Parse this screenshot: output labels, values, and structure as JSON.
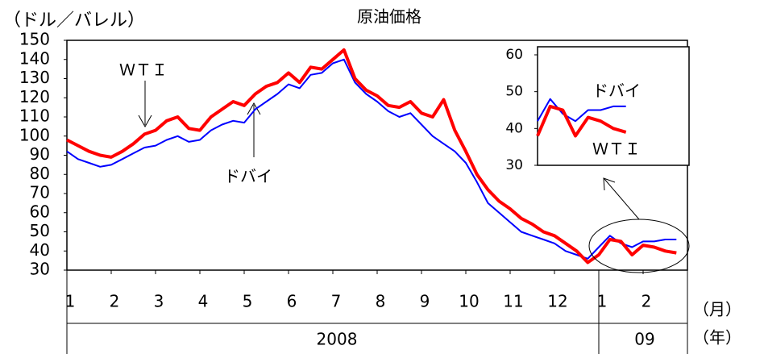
{
  "chart_data": {
    "type": "line",
    "title": "原油価格",
    "y_label": "（ドル／バレル）",
    "x_unit_label": "（月）",
    "year_unit_label": "（年）",
    "year_labels": [
      "2008",
      "09"
    ],
    "annotations": [
      "ＷＴＩ",
      "ドバイ"
    ],
    "xlim": [
      1,
      15
    ],
    "xticks": [
      1,
      2,
      3,
      4,
      5,
      6,
      7,
      8,
      9,
      10,
      11,
      12,
      {
        "value": 13,
        "label": "1"
      },
      {
        "value": 14,
        "label": "2"
      }
    ],
    "ylim": [
      30,
      150
    ],
    "yticks": [
      30,
      40,
      50,
      60,
      70,
      80,
      90,
      100,
      110,
      120,
      130,
      140,
      150
    ],
    "x": [
      1,
      1.25,
      1.5,
      1.75,
      2,
      2.25,
      2.5,
      2.75,
      3,
      3.25,
      3.5,
      3.75,
      4,
      4.25,
      4.5,
      4.75,
      5,
      5.25,
      5.5,
      5.75,
      6,
      6.25,
      6.5,
      6.75,
      7,
      7.25,
      7.5,
      7.75,
      8,
      8.25,
      8.5,
      8.75,
      9,
      9.25,
      9.5,
      9.75,
      10,
      10.25,
      10.5,
      10.75,
      11,
      11.25,
      11.5,
      11.75,
      12,
      12.25,
      12.5,
      12.75,
      13,
      13.25,
      13.5,
      13.75,
      14,
      14.25,
      14.5,
      14.75
    ],
    "series": [
      {
        "name": "ＷＴＩ",
        "color": "#ff0000",
        "width": 4,
        "values": [
          98,
          95,
          92,
          90,
          89,
          92,
          96,
          101,
          103,
          108,
          110,
          104,
          103,
          110,
          114,
          118,
          116,
          122,
          126,
          128,
          133,
          128,
          136,
          135,
          140,
          145,
          130,
          124,
          121,
          116,
          115,
          118,
          112,
          110,
          119,
          103,
          92,
          80,
          72,
          66,
          62,
          57,
          54,
          50,
          48,
          44,
          40,
          34,
          38,
          46,
          45,
          38,
          43,
          42,
          40,
          39
        ]
      },
      {
        "name": "ドバイ",
        "color": "#0000ff",
        "width": 2,
        "values": [
          92,
          88,
          86,
          84,
          85,
          88,
          91,
          94,
          95,
          98,
          100,
          97,
          98,
          103,
          106,
          108,
          107,
          114,
          118,
          122,
          127,
          125,
          132,
          133,
          138,
          140,
          128,
          122,
          118,
          113,
          110,
          112,
          106,
          100,
          96,
          92,
          86,
          76,
          65,
          60,
          55,
          50,
          48,
          46,
          44,
          40,
          38,
          36,
          42,
          48,
          44,
          42,
          45,
          45,
          46,
          46
        ]
      }
    ],
    "inset": {
      "xlim": [
        13,
        16
      ],
      "ylim": [
        30,
        60
      ],
      "yticks": [
        30,
        40,
        50,
        60
      ],
      "annotations": [
        "ドバイ",
        "ＷＴＩ"
      ]
    }
  }
}
